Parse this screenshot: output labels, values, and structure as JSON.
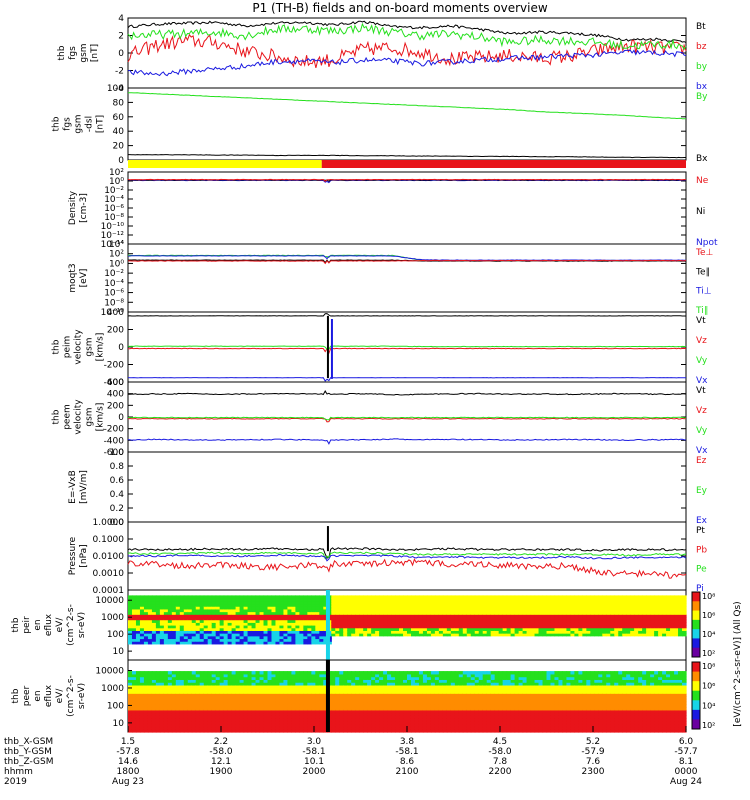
{
  "title": "P1 (TH-B) fields and on-board moments overview",
  "colors": {
    "black": "#000000",
    "red": "#e8141a",
    "green": "#25e01d",
    "blue": "#1a1ae0",
    "yellow": "#ffff00"
  },
  "chart_data": [
    {
      "type": "line",
      "name": "thb fgs gsm",
      "ylabel": [
        "thb",
        "fgs",
        "gsm",
        "[nT]"
      ],
      "ylim": [
        -4,
        4
      ],
      "yticks": [
        "4",
        "2",
        "0",
        "-2",
        "-4"
      ],
      "legend": [
        {
          "label": "Bt",
          "color": "black"
        },
        {
          "label": "bz",
          "color": "red"
        },
        {
          "label": "by",
          "color": "green"
        },
        {
          "label": "bx",
          "color": "blue"
        }
      ],
      "series": [
        {
          "name": "Bt",
          "color": "black",
          "noise": 0.15,
          "values": [
            3.0,
            3.3,
            3.4,
            3.5,
            3.1,
            3.4,
            3.5,
            3.2,
            3.6,
            3.0,
            2.9,
            3.1,
            2.7,
            2.2,
            2.4,
            2.3,
            2.0,
            1.5,
            1.6,
            1.3
          ]
        },
        {
          "name": "bz",
          "color": "red",
          "noise": 0.8,
          "values": [
            -0.3,
            0.9,
            1.4,
            1.2,
            0.2,
            -0.4,
            -1.0,
            -0.8,
            0.4,
            0.6,
            0.1,
            -0.7,
            -0.5,
            -0.3,
            -0.6,
            -0.4,
            0.3,
            0.8,
            0.6,
            0.5
          ]
        },
        {
          "name": "by",
          "color": "green",
          "noise": 0.5,
          "values": [
            2.0,
            2.1,
            2.2,
            2.4,
            2.0,
            2.7,
            2.8,
            2.5,
            2.9,
            2.4,
            2.0,
            2.2,
            1.8,
            1.2,
            1.5,
            1.4,
            1.2,
            0.8,
            1.0,
            0.9
          ]
        },
        {
          "name": "bx",
          "color": "blue",
          "noise": 0.3,
          "values": [
            -2.2,
            -2.4,
            -2.1,
            -1.8,
            -1.5,
            -1.0,
            -0.9,
            -1.1,
            -0.8,
            -0.9,
            -1.2,
            -1.0,
            -0.8,
            -0.6,
            -0.5,
            -0.3,
            -0.2,
            0.1,
            0.0,
            -0.2
          ]
        }
      ]
    },
    {
      "type": "line",
      "name": "thb fgs gsm -dsl",
      "ylabel": [
        "thb",
        "fgs",
        "gsm",
        "-dsl",
        "[nT]"
      ],
      "ylim": [
        -10,
        100
      ],
      "yticks": [
        "100",
        "80",
        "60",
        "40",
        "20",
        "0"
      ],
      "legend": [
        {
          "label": "By",
          "color": "green"
        },
        {
          "label": "Bx",
          "color": "black"
        }
      ],
      "series": [
        {
          "name": "By",
          "color": "green",
          "noise": 0.3,
          "values": [
            93,
            91,
            89,
            87,
            85,
            83,
            81,
            79,
            77,
            75,
            73,
            71,
            69,
            67,
            64,
            62,
            60,
            58,
            55,
            53
          ]
        },
        {
          "name": "Bx",
          "color": "black",
          "noise": 0.3,
          "values": [
            -2,
            -2,
            -2,
            -2.5,
            -2.5,
            -3,
            -3,
            -3,
            -3.5,
            -3.5,
            -4,
            -4,
            -4.5,
            -4.5,
            -5,
            -5,
            -5.5,
            -6,
            -6,
            -6.5
          ]
        }
      ]
    },
    {
      "type": "heatmap",
      "name": "mode bar",
      "segments": [
        {
          "from": 1800,
          "to": 2005,
          "color": "yellow"
        },
        {
          "from": 2005,
          "to": 2400,
          "color": "red"
        }
      ]
    },
    {
      "type": "line",
      "scale": "log",
      "name": "Density",
      "ylabel": [
        "Density",
        "[cm-3]"
      ],
      "ylim": [
        -15,
        3
      ],
      "yticks": [
        "10²",
        "10⁰",
        "10⁻²",
        "10⁻⁴",
        "10⁻⁶",
        "10⁻⁸",
        "10⁻¹⁰",
        "10⁻¹²",
        "10⁻¹⁴"
      ],
      "legend": [
        {
          "label": "Ne",
          "color": "red"
        },
        {
          "label": "Ni",
          "color": "black"
        },
        {
          "label": "Npot",
          "color": "blue"
        }
      ],
      "series": [
        {
          "name": "Npot",
          "color": "blue",
          "noise": 0.05,
          "values": [
            0.9,
            0.9,
            0.9,
            0.9,
            0.9,
            0.9,
            0.9,
            0.9,
            0.9,
            0.9,
            0.9,
            0.9,
            0.9,
            0.9,
            0.9,
            0.9,
            0.9,
            0.9,
            0.9,
            0.9
          ]
        },
        {
          "name": "Ni",
          "color": "black",
          "noise": 0.05,
          "values": [
            1.0,
            1.0,
            1.0,
            1.0,
            1.0,
            1.0,
            1.0,
            1.0,
            1.0,
            1.0,
            1.0,
            1.0,
            1.0,
            1.0,
            1.0,
            1.0,
            1.0,
            1.0,
            1.0,
            1.0
          ]
        },
        {
          "name": "Ne",
          "color": "red",
          "noise": 0.05,
          "values": [
            1.1,
            1.1,
            1.1,
            1.1,
            1.1,
            1.1,
            1.1,
            1.1,
            1.1,
            1.1,
            1.1,
            1.1,
            1.1,
            1.1,
            1.1,
            1.1,
            1.1,
            1.1,
            1.1,
            1.1
          ]
        }
      ]
    },
    {
      "type": "line",
      "scale": "log",
      "name": "moqt3",
      "ylabel": [
        "moqt3",
        "[eV]"
      ],
      "ylim": [
        -11,
        5
      ],
      "yticks": [
        "10⁴",
        "10²",
        "10⁰",
        "10⁻²",
        "10⁻⁴",
        "10⁻⁶",
        "10⁻⁸",
        "10⁻¹⁰"
      ],
      "legend": [
        {
          "label": "Te⊥",
          "color": "red"
        },
        {
          "label": "Te∥",
          "color": "black"
        },
        {
          "label": "Ti⊥",
          "color": "blue"
        },
        {
          "label": "Ti∥",
          "color": "green"
        }
      ],
      "series": [
        {
          "name": "Ti∥",
          "color": "green",
          "noise": 0.05,
          "values": [
            2.3,
            2.3,
            2.3,
            2.3,
            2.3,
            2.3,
            2.3,
            2.3,
            2.3,
            2.3,
            1.2,
            1.1,
            1.1,
            1.1,
            1.1,
            1.1,
            1.1,
            1.1,
            1.1,
            1.1
          ]
        },
        {
          "name": "Ti⊥",
          "color": "blue",
          "noise": 0.05,
          "values": [
            2.2,
            2.2,
            2.2,
            2.2,
            2.2,
            2.2,
            2.2,
            2.2,
            2.2,
            2.2,
            1.3,
            1.2,
            1.2,
            1.2,
            1.2,
            1.2,
            1.2,
            1.2,
            1.2,
            1.2
          ]
        },
        {
          "name": "Te∥",
          "color": "black",
          "noise": 0.05,
          "values": [
            1.2,
            1.2,
            1.2,
            1.2,
            1.2,
            1.2,
            1.2,
            1.2,
            1.2,
            1.2,
            1.0,
            1.0,
            1.0,
            1.0,
            1.0,
            1.0,
            1.0,
            1.0,
            1.0,
            1.0
          ]
        },
        {
          "name": "Te⊥",
          "color": "red",
          "noise": 0.05,
          "values": [
            1.0,
            1.0,
            1.0,
            1.0,
            1.0,
            1.0,
            1.0,
            1.0,
            1.0,
            1.0,
            1.1,
            1.1,
            1.1,
            1.1,
            1.1,
            1.1,
            1.1,
            1.1,
            1.1,
            1.1
          ]
        }
      ]
    },
    {
      "type": "line",
      "name": "thb peim velocity gsm",
      "ylabel": [
        "thb",
        "peim",
        "velocity",
        "gsm",
        "[km/s]"
      ],
      "ylim": [
        -450,
        450
      ],
      "yticks": [
        "400",
        "200",
        "0",
        "-200",
        "-400"
      ],
      "legend": [
        {
          "label": "Vt",
          "color": "black"
        },
        {
          "label": "Vz",
          "color": "red"
        },
        {
          "label": "Vy",
          "color": "green"
        },
        {
          "label": "Vx",
          "color": "blue"
        }
      ],
      "series": [
        {
          "name": "Vt",
          "color": "black",
          "noise": 2,
          "values": [
            400,
            400,
            400,
            400,
            400,
            400,
            400,
            400,
            400,
            400,
            400,
            400,
            400,
            400,
            400,
            400,
            400,
            400,
            400,
            400
          ]
        },
        {
          "name": "Vz",
          "color": "red",
          "noise": 3,
          "values": [
            -20,
            -20,
            -20,
            -20,
            -20,
            -20,
            -20,
            -20,
            -20,
            -20,
            -20,
            -20,
            -20,
            -20,
            -20,
            -20,
            -20,
            -20,
            -20,
            -20
          ]
        },
        {
          "name": "Vy",
          "color": "green",
          "noise": 3,
          "values": [
            10,
            10,
            10,
            10,
            10,
            10,
            10,
            10,
            10,
            10,
            5,
            5,
            5,
            5,
            5,
            5,
            5,
            5,
            5,
            5
          ]
        },
        {
          "name": "Vx",
          "color": "blue",
          "noise": 2,
          "values": [
            -395,
            -395,
            -395,
            -395,
            -395,
            -395,
            -395,
            -395,
            -395,
            -395,
            -395,
            -395,
            -395,
            -395,
            -395,
            -395,
            -395,
            -395,
            -395,
            -395
          ]
        }
      ]
    },
    {
      "type": "line",
      "name": "thb peem velocity gsm",
      "ylabel": [
        "thb",
        "peem",
        "velocity",
        "gsm",
        "[km/s]"
      ],
      "ylim": [
        -600,
        600
      ],
      "yticks": [
        "600",
        "400",
        "200",
        "0",
        "-200",
        "-400",
        "-600"
      ],
      "legend": [
        {
          "label": "Vt",
          "color": "black"
        },
        {
          "label": "Vz",
          "color": "red"
        },
        {
          "label": "Vy",
          "color": "green"
        },
        {
          "label": "Vx",
          "color": "blue"
        }
      ],
      "series": [
        {
          "name": "Vt",
          "color": "black",
          "noise": 8,
          "values": [
            390,
            395,
            400,
            390,
            395,
            400,
            395,
            390,
            400,
            380,
            390,
            395,
            400,
            390,
            395,
            390,
            395,
            400,
            390,
            395
          ]
        },
        {
          "name": "Vz",
          "color": "red",
          "noise": 6,
          "values": [
            -30,
            -30,
            -30,
            -30,
            -30,
            -30,
            -30,
            -30,
            -30,
            -30,
            -30,
            -30,
            -30,
            -30,
            -30,
            -30,
            -30,
            -30,
            -30,
            -30
          ]
        },
        {
          "name": "Vy",
          "color": "green",
          "noise": 6,
          "values": [
            -10,
            -10,
            -10,
            -10,
            -10,
            -10,
            -10,
            -10,
            -10,
            -10,
            -10,
            -10,
            -10,
            -10,
            -10,
            -10,
            -10,
            -10,
            -10,
            -10
          ]
        },
        {
          "name": "Vx",
          "color": "blue",
          "noise": 8,
          "values": [
            -390,
            -385,
            -390,
            -395,
            -390,
            -385,
            -390,
            -395,
            -390,
            -380,
            -390,
            -385,
            -390,
            -395,
            -390,
            -385,
            -390,
            -395,
            -390,
            -385
          ]
        }
      ]
    },
    {
      "type": "line",
      "name": "E=-VxB",
      "ylabel": [
        "E=-VxB",
        "[mV/m]"
      ],
      "ylim": [
        0,
        1
      ],
      "yticks": [
        "1.0",
        "0.8",
        "0.6",
        "0.4",
        "0.2",
        "0.0"
      ],
      "legend": [
        {
          "label": "Ez",
          "color": "red"
        },
        {
          "label": "Ey",
          "color": "green"
        },
        {
          "label": "Ex",
          "color": "blue"
        }
      ],
      "series": []
    },
    {
      "type": "line",
      "scale": "log",
      "name": "Pressure",
      "ylabel": [
        "Pressure",
        "[nPa]"
      ],
      "ylim": [
        -4,
        0.2
      ],
      "yticks": [
        "1.0000",
        "0.1000",
        "0.0100",
        "0.0010",
        "0.0001"
      ],
      "legend": [
        {
          "label": "Pt",
          "color": "black"
        },
        {
          "label": "Pb",
          "color": "red"
        },
        {
          "label": "Pe",
          "color": "green"
        },
        {
          "label": "Pi",
          "color": "blue"
        }
      ],
      "series": [
        {
          "name": "Pt",
          "color": "black",
          "noise": 0.06,
          "values": [
            -1.5,
            -1.5,
            -1.5,
            -1.45,
            -1.5,
            -1.45,
            -1.5,
            -1.45,
            -1.45,
            -1.5,
            -1.5,
            -1.45,
            -1.5,
            -1.5,
            -1.5,
            -1.5,
            -1.55,
            -1.5,
            -1.5,
            -1.55
          ]
        },
        {
          "name": "Pe",
          "color": "green",
          "noise": 0.05,
          "values": [
            -1.75,
            -1.75,
            -1.75,
            -1.7,
            -1.75,
            -1.7,
            -1.75,
            -1.7,
            -1.7,
            -1.75,
            -1.8,
            -1.8,
            -1.8,
            -1.8,
            -1.8,
            -1.8,
            -1.8,
            -1.85,
            -1.8,
            -1.8
          ]
        },
        {
          "name": "Pi",
          "color": "blue",
          "noise": 0.05,
          "values": [
            -1.9,
            -1.9,
            -1.85,
            -1.9,
            -1.9,
            -1.85,
            -1.9,
            -1.9,
            -1.85,
            -1.9,
            -2.0,
            -1.95,
            -2.0,
            -2.0,
            -2.0,
            -1.95,
            -2.05,
            -2.0,
            -2.0,
            -2.0
          ]
        },
        {
          "name": "Pb",
          "color": "red",
          "noise": 0.2,
          "values": [
            -2.3,
            -2.4,
            -2.5,
            -2.4,
            -2.5,
            -2.6,
            -2.5,
            -2.4,
            -2.4,
            -2.3,
            -2.3,
            -2.4,
            -2.4,
            -2.5,
            -2.6,
            -2.5,
            -2.9,
            -3.0,
            -3.0,
            -3.2
          ]
        }
      ]
    },
    {
      "type": "heatmap",
      "name": "thb peir en eflux",
      "ylabel": [
        "thb",
        "peir",
        "en",
        "eflux",
        "eV/",
        "(cm^2-s-",
        "sr-eV)"
      ],
      "ylim": [
        3,
        40000
      ],
      "yticks": [
        "10000",
        "1000",
        "100",
        "10"
      ]
    },
    {
      "type": "heatmap",
      "name": "thb peer en eflux",
      "ylabel": [
        "thb",
        "peer",
        "en",
        "eflux",
        "eV/",
        "(cm^2-s-",
        "sr-eV)"
      ],
      "ylim": [
        3,
        40000
      ],
      "yticks": [
        "10000",
        "1000",
        "100",
        "10"
      ]
    }
  ],
  "colorbar": {
    "label": "[eV/(cm^2-s-sr-eV)] (All Qs)",
    "ticks_top": [
      "10⁸",
      "10⁶",
      "10⁴",
      "10²"
    ],
    "ticks_bottom": [
      "10⁸",
      "10⁶",
      "10⁴",
      "10²"
    ]
  },
  "xaxis": {
    "rows": [
      {
        "label": "thb_X-GSM",
        "values": [
          "1.5",
          "2.2",
          "3.0",
          "3.8",
          "4.5",
          "5.2",
          "6.0"
        ]
      },
      {
        "label": "thb_Y-GSM",
        "values": [
          "-57.8",
          "-58.0",
          "-58.1",
          "-58.1",
          "-58.0",
          "-57.9",
          "-57.7"
        ]
      },
      {
        "label": "thb_Z-GSM",
        "values": [
          "14.6",
          "12.1",
          "10.1",
          "8.6",
          "7.8",
          "7.6",
          "8.1"
        ]
      },
      {
        "label": "hhmm",
        "values": [
          "1800",
          "1900",
          "2000",
          "2100",
          "2200",
          "2300",
          "0000"
        ]
      },
      {
        "label": "2019",
        "values": [
          "Aug 23",
          "",
          "",
          "",
          "",
          "",
          "Aug 24"
        ]
      }
    ]
  }
}
